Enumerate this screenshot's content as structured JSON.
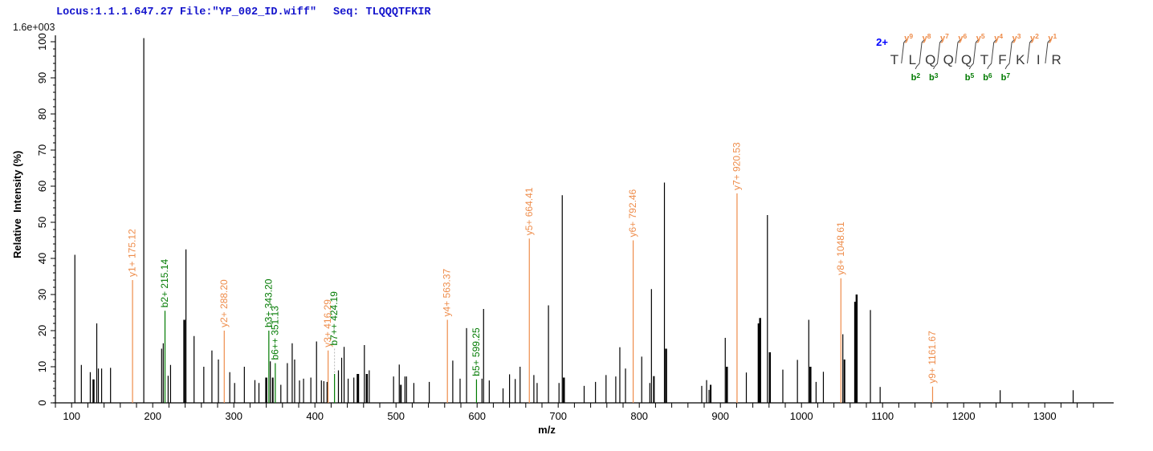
{
  "header": {
    "locus": "Locus:1.1.1.647.27 File:\"YP_002_ID.wiff\"",
    "seq": "Seq: TLQQQTFKIR",
    "scale_label": "1.6e+003"
  },
  "colors": {
    "y_ion": "#ee8c4a",
    "b_ion": "#007a00",
    "peak": "#000000",
    "header_blue": "#1414cc",
    "charge_blue": "#0000ff",
    "connector_gray": "#b5b5b5",
    "residue": "#3a3a3a"
  },
  "peptide": {
    "charge": "2+",
    "residues": [
      "T",
      "L",
      "Q",
      "Q",
      "Q",
      "T",
      "F",
      "K",
      "I",
      "R"
    ],
    "y_labels": [
      "y9",
      "y8",
      "y7",
      "y6",
      "y5",
      "y4",
      "y3",
      "y2",
      "y1"
    ],
    "b_labels": [
      null,
      "b2",
      "b3",
      null,
      "b5",
      "b6",
      "b7",
      null,
      null
    ]
  },
  "chart_data": {
    "type": "bar",
    "subtype": "ms2-stick-spectrum",
    "xlabel": "m/z",
    "ylabel": "Relative  Intensity (%)",
    "intensity_scale": "1.6e+003",
    "x_axis": {
      "min": 80,
      "max": 1385,
      "minor_tick_step": 20,
      "label_step": 100,
      "first_label": 100,
      "last_label": 1300
    },
    "y_axis": {
      "min": 0,
      "max": 100,
      "minor_tick_step": 2,
      "major_tick_step": 10
    },
    "grid": false,
    "peaks": [
      {
        "mz": 104,
        "intensity": 41
      },
      {
        "mz": 112,
        "intensity": 10.5
      },
      {
        "mz": 123,
        "intensity": 8.5
      },
      {
        "mz": 127,
        "intensity": 6.5,
        "w": 2.5
      },
      {
        "mz": 131,
        "intensity": 22
      },
      {
        "mz": 133,
        "intensity": 9.5
      },
      {
        "mz": 137,
        "intensity": 9.5
      },
      {
        "mz": 148,
        "intensity": 9.7
      },
      {
        "mz": 175.12,
        "intensity": 34,
        "ion": "y1+",
        "label": "y1+ 175.12"
      },
      {
        "mz": 189,
        "intensity": 101
      },
      {
        "mz": 211,
        "intensity": 15
      },
      {
        "mz": 213,
        "intensity": 16.5
      },
      {
        "mz": 215.14,
        "intensity": 25.5,
        "ion": "b2+",
        "label": "b2+ 215.14"
      },
      {
        "mz": 219,
        "intensity": 7.5
      },
      {
        "mz": 222,
        "intensity": 10.5
      },
      {
        "mz": 239,
        "intensity": 23,
        "w": 2.5
      },
      {
        "mz": 241,
        "intensity": 42.5
      },
      {
        "mz": 251,
        "intensity": 18.5
      },
      {
        "mz": 263,
        "intensity": 10
      },
      {
        "mz": 273,
        "intensity": 14.5
      },
      {
        "mz": 281,
        "intensity": 12
      },
      {
        "mz": 288.2,
        "intensity": 20,
        "ion": "y2+",
        "label": "y2+ 288.20"
      },
      {
        "mz": 295,
        "intensity": 8.5
      },
      {
        "mz": 301,
        "intensity": 5.5
      },
      {
        "mz": 313,
        "intensity": 10
      },
      {
        "mz": 326,
        "intensity": 6.3
      },
      {
        "mz": 331,
        "intensity": 5.5
      },
      {
        "mz": 340,
        "intensity": 7,
        "w": 2.5
      },
      {
        "mz": 343.2,
        "intensity": 20,
        "ion": "b3+",
        "label": "b3+ 343.20"
      },
      {
        "mz": 345,
        "intensity": 11.5
      },
      {
        "mz": 348,
        "intensity": 7,
        "w": 2
      },
      {
        "mz": 351.13,
        "intensity": 11,
        "ion": "b6++",
        "label": "b6++ 351.13"
      },
      {
        "mz": 358,
        "intensity": 5
      },
      {
        "mz": 366,
        "intensity": 11
      },
      {
        "mz": 372,
        "intensity": 16.5
      },
      {
        "mz": 375,
        "intensity": 12
      },
      {
        "mz": 381,
        "intensity": 6.2
      },
      {
        "mz": 386,
        "intensity": 6.7
      },
      {
        "mz": 395,
        "intensity": 7
      },
      {
        "mz": 402,
        "intensity": 17
      },
      {
        "mz": 408,
        "intensity": 6.2
      },
      {
        "mz": 411,
        "intensity": 6
      },
      {
        "mz": 415,
        "intensity": 5.8
      },
      {
        "mz": 416.29,
        "intensity": 14.5,
        "ion": "y3+",
        "label": "y3+ 416.29"
      },
      {
        "mz": 424.19,
        "intensity": 8,
        "ion": "b7++",
        "label": "b7++ 424.19",
        "label_height": 15,
        "connector": "dashed"
      },
      {
        "mz": 429,
        "intensity": 9
      },
      {
        "mz": 433,
        "intensity": 12.5
      },
      {
        "mz": 436,
        "intensity": 15.5
      },
      {
        "mz": 441,
        "intensity": 6.7
      },
      {
        "mz": 448,
        "intensity": 7
      },
      {
        "mz": 453,
        "intensity": 8,
        "w": 3
      },
      {
        "mz": 461,
        "intensity": 16
      },
      {
        "mz": 464,
        "intensity": 8,
        "w": 2.5
      },
      {
        "mz": 467,
        "intensity": 9
      },
      {
        "mz": 497,
        "intensity": 7.3
      },
      {
        "mz": 504,
        "intensity": 10.6
      },
      {
        "mz": 506,
        "intensity": 5,
        "w": 2
      },
      {
        "mz": 511,
        "intensity": 7.3
      },
      {
        "mz": 513,
        "intensity": 7.3
      },
      {
        "mz": 522,
        "intensity": 5.5
      },
      {
        "mz": 541,
        "intensity": 5.8
      },
      {
        "mz": 563.37,
        "intensity": 23,
        "ion": "y4+",
        "label": "y4+ 563.37"
      },
      {
        "mz": 570,
        "intensity": 11.7
      },
      {
        "mz": 579,
        "intensity": 6.7
      },
      {
        "mz": 587,
        "intensity": 20.7
      },
      {
        "mz": 599.25,
        "intensity": 6.5,
        "ion": "b5+",
        "label": "b5+ 599.25"
      },
      {
        "mz": 606,
        "intensity": 6.7
      },
      {
        "mz": 608,
        "intensity": 26
      },
      {
        "mz": 615,
        "intensity": 6.2
      },
      {
        "mz": 632,
        "intensity": 4
      },
      {
        "mz": 640,
        "intensity": 7.9
      },
      {
        "mz": 647,
        "intensity": 6.6
      },
      {
        "mz": 653,
        "intensity": 10
      },
      {
        "mz": 664.41,
        "intensity": 45.5,
        "ion": "y5+",
        "label": "y5+ 664.41"
      },
      {
        "mz": 670,
        "intensity": 7.7
      },
      {
        "mz": 674,
        "intensity": 5.5
      },
      {
        "mz": 688,
        "intensity": 27
      },
      {
        "mz": 701,
        "intensity": 5.5
      },
      {
        "mz": 705,
        "intensity": 57.5
      },
      {
        "mz": 707,
        "intensity": 7,
        "w": 2.5
      },
      {
        "mz": 732,
        "intensity": 4.7
      },
      {
        "mz": 746,
        "intensity": 5.8
      },
      {
        "mz": 759,
        "intensity": 7.7
      },
      {
        "mz": 771,
        "intensity": 7.3
      },
      {
        "mz": 776,
        "intensity": 15.4
      },
      {
        "mz": 783,
        "intensity": 9.5
      },
      {
        "mz": 792.46,
        "intensity": 45,
        "ion": "y6+",
        "label": "y6+ 792.46"
      },
      {
        "mz": 803,
        "intensity": 12.8
      },
      {
        "mz": 813,
        "intensity": 5.5
      },
      {
        "mz": 815,
        "intensity": 31.5
      },
      {
        "mz": 818,
        "intensity": 7.4,
        "w": 2
      },
      {
        "mz": 831,
        "intensity": 61
      },
      {
        "mz": 833,
        "intensity": 15,
        "w": 2.5
      },
      {
        "mz": 877,
        "intensity": 4.7
      },
      {
        "mz": 883,
        "intensity": 6.3
      },
      {
        "mz": 886,
        "intensity": 3.6
      },
      {
        "mz": 888,
        "intensity": 5,
        "w": 2
      },
      {
        "mz": 906,
        "intensity": 18
      },
      {
        "mz": 908,
        "intensity": 10,
        "w": 2.5
      },
      {
        "mz": 920.53,
        "intensity": 58,
        "ion": "y7+",
        "label": "y7+ 920.53"
      },
      {
        "mz": 932,
        "intensity": 8.4
      },
      {
        "mz": 947,
        "intensity": 22,
        "w": 2
      },
      {
        "mz": 949,
        "intensity": 23.5,
        "w": 2.5
      },
      {
        "mz": 958,
        "intensity": 52
      },
      {
        "mz": 961,
        "intensity": 14,
        "w": 2.5
      },
      {
        "mz": 977,
        "intensity": 9.2
      },
      {
        "mz": 995,
        "intensity": 11.9
      },
      {
        "mz": 1009,
        "intensity": 23
      },
      {
        "mz": 1011,
        "intensity": 10,
        "w": 2.5
      },
      {
        "mz": 1018,
        "intensity": 5.8
      },
      {
        "mz": 1027,
        "intensity": 8.6
      },
      {
        "mz": 1048.61,
        "intensity": 34.5,
        "ion": "y8+",
        "label": "y8+ 1048.61"
      },
      {
        "mz": 1051,
        "intensity": 19
      },
      {
        "mz": 1053,
        "intensity": 12,
        "w": 2
      },
      {
        "mz": 1066,
        "intensity": 28,
        "w": 2
      },
      {
        "mz": 1068,
        "intensity": 30,
        "w": 2.5
      },
      {
        "mz": 1085,
        "intensity": 25.7
      },
      {
        "mz": 1097,
        "intensity": 4.4
      },
      {
        "mz": 1161.67,
        "intensity": 4.5,
        "ion": "y9+",
        "label": "y9+ 1161.67"
      },
      {
        "mz": 1245,
        "intensity": 3.5
      },
      {
        "mz": 1335,
        "intensity": 3.5
      }
    ]
  }
}
